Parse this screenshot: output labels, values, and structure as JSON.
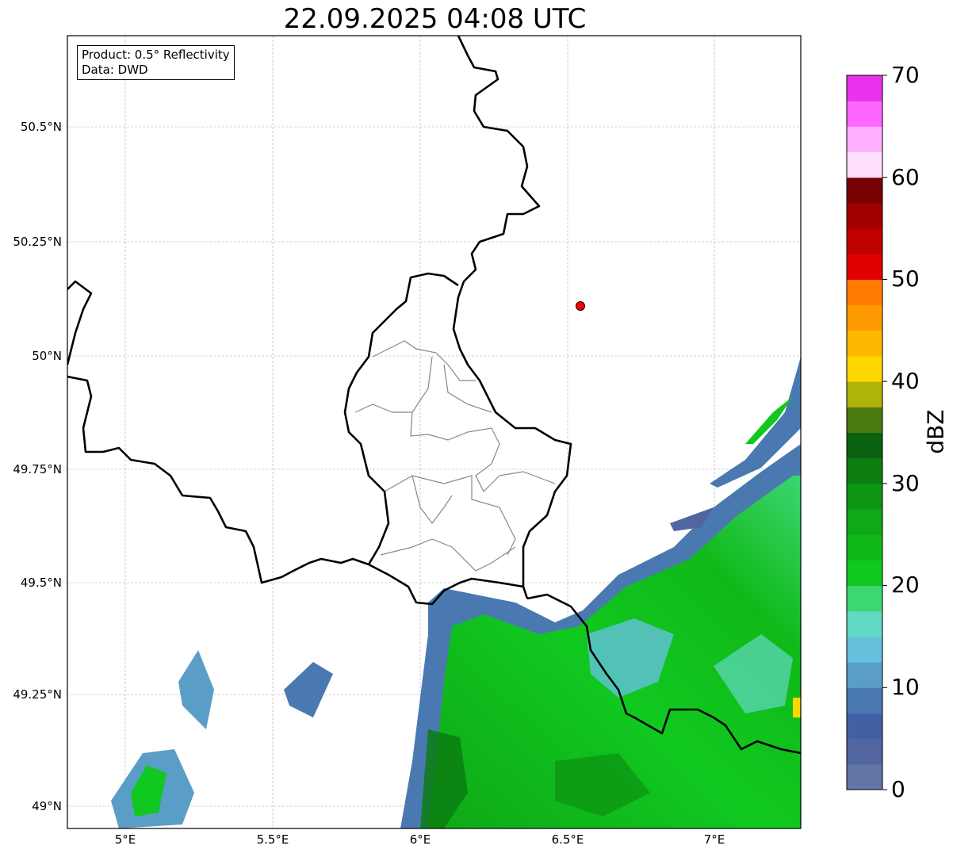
{
  "title": "22.09.2025 04:08 UTC",
  "info_box": {
    "line1": "Product: 0.5° Reflectivity",
    "line2": "Data: DWD"
  },
  "axes": {
    "lat_labels": [
      "50.5°N",
      "50.25°N",
      "50°N",
      "49.75°N",
      "49.5°N",
      "49.25°N",
      "49°N"
    ],
    "lon_labels": [
      "5°E",
      "5.5°E",
      "6°E",
      "6.5°E",
      "7°E"
    ],
    "lon_range": [
      4.8,
      7.3
    ],
    "lat_range": [
      48.95,
      50.72
    ]
  },
  "marker": {
    "type": "radar-site",
    "lon": 6.55,
    "lat": 50.11,
    "color": "#ff0000"
  },
  "colorbar": {
    "label": "dBZ",
    "ticks": [
      "0",
      "10",
      "20",
      "30",
      "40",
      "50",
      "60",
      "70"
    ],
    "range": [
      0,
      70
    ],
    "step": 2.5,
    "colors": [
      "#6374a6",
      "#5166a0",
      "#4460a5",
      "#4a79b1",
      "#5a9ec8",
      "#64c0dc",
      "#62d8c4",
      "#3cd672",
      "#10c820",
      "#10b918",
      "#0fa816",
      "#0d9614",
      "#0c7e12",
      "#0a6210",
      "#4a7a10",
      "#b0b408",
      "#ffd700",
      "#ffb800",
      "#ff9a00",
      "#ff7c00",
      "#e00000",
      "#c00000",
      "#a00000",
      "#780000",
      "#ffe0ff",
      "#ffb0ff",
      "#ff66ff",
      "#e832ec"
    ]
  }
}
